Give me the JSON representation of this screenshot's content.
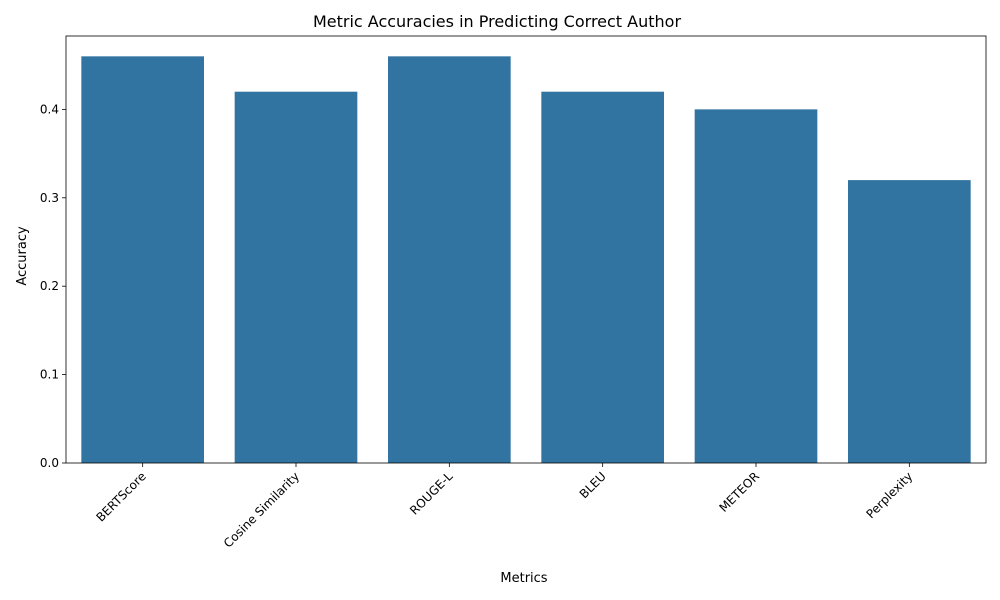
{
  "chart_data": {
    "type": "bar",
    "title": "Metric Accuracies in Predicting Correct Author",
    "xlabel": "Metrics",
    "ylabel": "Accuracy",
    "categories": [
      "BERTScore",
      "Cosine Similarity",
      "ROUGE-L",
      "BLEU",
      "METEOR",
      "Perplexity"
    ],
    "values": [
      0.46,
      0.42,
      0.46,
      0.42,
      0.4,
      0.32
    ],
    "ylim": [
      0,
      0.483
    ],
    "yticks": [
      0.0,
      0.1,
      0.2,
      0.3,
      0.4
    ],
    "ytick_labels": [
      "0.0",
      "0.1",
      "0.2",
      "0.3",
      "0.4"
    ],
    "xtick_rotation_deg": 45,
    "grid": false,
    "bar_color": "#3274a1"
  }
}
